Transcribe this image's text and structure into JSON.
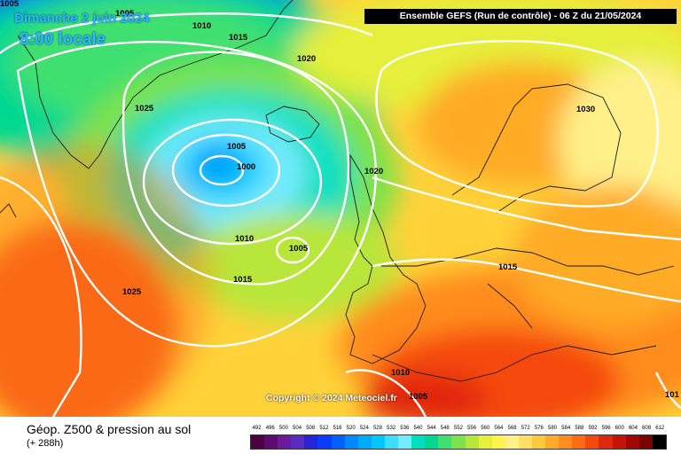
{
  "header": {
    "model_title": "Ensemble GEFS  (Run de contrôle)  -  06 Z du 21/05/2024",
    "date_title": "Dimanche 2 juin 2024",
    "time_title": "8:00 locale"
  },
  "map": {
    "copyright": "Copyright © 2024 Meteociel.fr",
    "isobar_labels": [
      {
        "id": "l1",
        "text": "1005"
      },
      {
        "id": "l2",
        "text": "1005"
      },
      {
        "id": "l3",
        "text": "1010"
      },
      {
        "id": "l4",
        "text": "1015"
      },
      {
        "id": "l5",
        "text": "1020"
      },
      {
        "id": "l6",
        "text": "1025"
      },
      {
        "id": "l7",
        "text": "1005"
      },
      {
        "id": "l8",
        "text": "1000"
      },
      {
        "id": "l9",
        "text": "1020"
      },
      {
        "id": "l10",
        "text": "1030"
      },
      {
        "id": "l11",
        "text": "1010"
      },
      {
        "id": "l12",
        "text": "1005"
      },
      {
        "id": "l13",
        "text": "1015"
      },
      {
        "id": "l14",
        "text": "1025"
      },
      {
        "id": "l15",
        "text": "1015"
      },
      {
        "id": "l16",
        "text": "1010"
      },
      {
        "id": "l17",
        "text": "1005"
      },
      {
        "id": "l18",
        "text": "101"
      }
    ]
  },
  "footer": {
    "parameter_title": "Géop. Z500 & pression au sol",
    "lead_time": "(+ 288h)"
  },
  "legend": {
    "labels": [
      "492",
      "496",
      "500",
      "504",
      "508",
      "512",
      "516",
      "520",
      "524",
      "528",
      "532",
      "536",
      "540",
      "544",
      "548",
      "552",
      "556",
      "560",
      "564",
      "568",
      "572",
      "576",
      "580",
      "584",
      "588",
      "592",
      "596",
      "600",
      "604",
      "608",
      "612"
    ],
    "colors": [
      "#4b0042",
      "#5e0a6e",
      "#6d1a9a",
      "#5a2bc0",
      "#2424d8",
      "#0a3cff",
      "#0061ff",
      "#0088ff",
      "#00aaff",
      "#00c8ff",
      "#3ddcff",
      "#74ecff",
      "#00e0c0",
      "#00d890",
      "#40e070",
      "#7ee24a",
      "#b8e63a",
      "#e6ef3b",
      "#fff44f",
      "#fff08a",
      "#ffe060",
      "#ffc83c",
      "#ffab28",
      "#ff8c1e",
      "#ff6a14",
      "#f54a0f",
      "#e0280c",
      "#c41408",
      "#a00806",
      "#780404",
      "#000000"
    ]
  }
}
